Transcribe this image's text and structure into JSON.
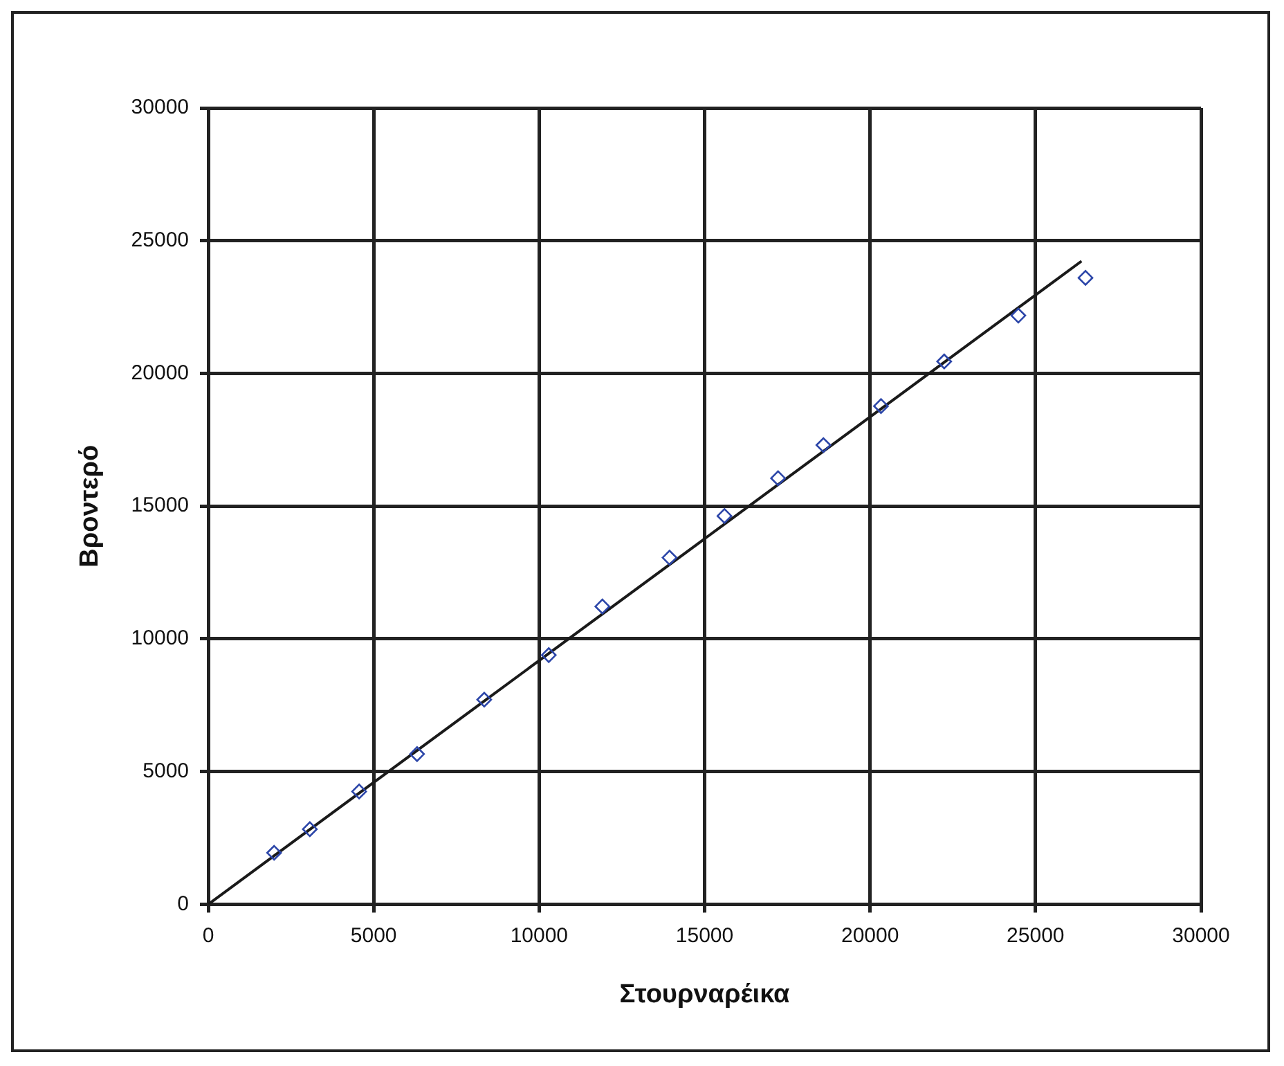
{
  "chart_data": {
    "type": "scatter",
    "xlabel": "Στουρναρέικα",
    "ylabel": "Βροντερό",
    "xlim": [
      0,
      30000
    ],
    "ylim": [
      0,
      30000
    ],
    "xticks": [
      0,
      5000,
      10000,
      15000,
      20000,
      25000,
      30000
    ],
    "yticks": [
      0,
      5000,
      10000,
      15000,
      20000,
      25000,
      30000
    ],
    "grid": true,
    "legend": false,
    "marker": "diamond",
    "series": [
      {
        "color": "#2b45a8",
        "x": [
          1990,
          3070,
          4560,
          6310,
          8340,
          10290,
          11910,
          13940,
          15600,
          17220,
          18590,
          20330,
          22240,
          24480,
          26510
        ],
        "values": [
          1940,
          2830,
          4250,
          5660,
          7710,
          9390,
          11220,
          13060,
          14630,
          16050,
          17300,
          18770,
          20450,
          22180,
          23600
        ]
      },
      {
        "type": "line",
        "color": "#1a1a1a",
        "line_style": "solid",
        "marker": "none",
        "x": [
          0,
          26390
        ],
        "values": [
          0,
          24230
        ]
      }
    ]
  }
}
